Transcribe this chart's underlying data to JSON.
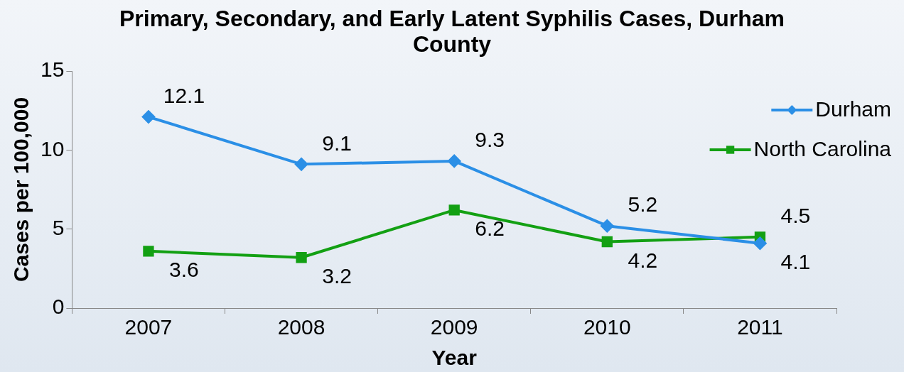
{
  "chart_data": {
    "type": "line",
    "title": "Primary, Secondary, and Early Latent Syphilis Cases, Durham County",
    "xlabel": "Year",
    "ylabel": "Cases per 100,000",
    "categories": [
      "2007",
      "2008",
      "2009",
      "2010",
      "2011"
    ],
    "series": [
      {
        "name": "Durham",
        "color": "#2b8fe6",
        "marker": "diamond",
        "values": [
          12.1,
          9.1,
          9.3,
          5.2,
          4.1
        ]
      },
      {
        "name": "North Carolina",
        "color": "#13a013",
        "marker": "square",
        "values": [
          3.6,
          3.2,
          6.2,
          4.2,
          4.5
        ]
      }
    ],
    "ylim": [
      0,
      15
    ],
    "yticks": [
      0,
      5,
      10,
      15
    ],
    "grid": false,
    "legend": "top right",
    "data_labels": true,
    "line_style": "solid"
  }
}
